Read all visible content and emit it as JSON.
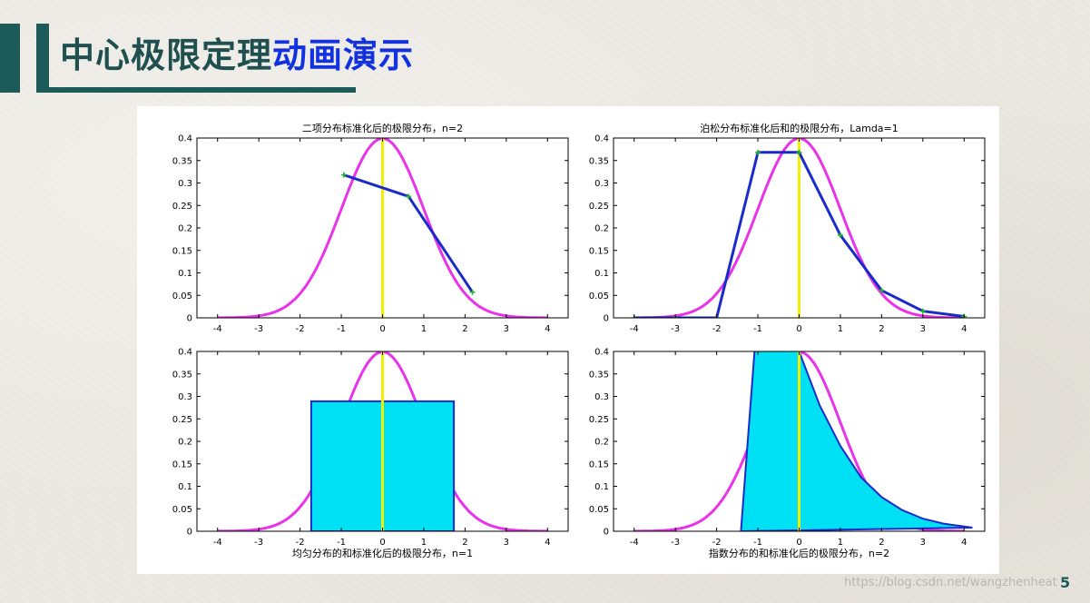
{
  "slide": {
    "title_part1": "中心极限定理",
    "title_part2": "动画演示",
    "watermark": "https://blog.csdn.net/wangzhenheat",
    "page_number": "5"
  },
  "colors": {
    "normal_curve": "#e933e9",
    "mean_line": "#f0f000",
    "data": "#1a2bc8",
    "marker": "#22bb22",
    "fill": "#00e0f4",
    "slide_accent": "#1d5a5a",
    "title_blue": "#1232e0"
  },
  "chart_data": [
    {
      "type": "line",
      "title": "二项分布标准化后的极限分布，n=2",
      "xlim": [
        -4.5,
        4.5
      ],
      "ylim": [
        0,
        0.4
      ],
      "xticks": [
        "-4",
        "-3",
        "-2",
        "-1",
        "0",
        "1",
        "2",
        "3",
        "4"
      ],
      "yticks": [
        "0",
        "0.05",
        "0.1",
        "0.15",
        "0.2",
        "0.25",
        "0.3",
        "0.35",
        "0.4"
      ],
      "series": [
        {
          "kind": "normal_pdf",
          "x_range": [
            -4,
            4
          ]
        },
        {
          "kind": "mean_line",
          "x": 0
        },
        {
          "kind": "polyline_markers",
          "x": [
            -0.94,
            0.63,
            2.18
          ],
          "y": [
            0.318,
            0.27,
            0.057
          ]
        }
      ]
    },
    {
      "type": "line",
      "title": "泊松分布标准化后和的极限分布，Lamda=1",
      "xlim": [
        -4.5,
        4.5
      ],
      "ylim": [
        0,
        0.4
      ],
      "xticks": [
        "-4",
        "-3",
        "-2",
        "-1",
        "0",
        "1",
        "2",
        "3",
        "4"
      ],
      "yticks": [
        "0",
        "0.05",
        "0.1",
        "0.15",
        "0.2",
        "0.25",
        "0.3",
        "0.35",
        "0.4"
      ],
      "series": [
        {
          "kind": "normal_pdf",
          "x_range": [
            -4,
            4
          ]
        },
        {
          "kind": "mean_line",
          "x": 0
        },
        {
          "kind": "polyline_markers",
          "x": [
            -4,
            -3,
            -2,
            -1,
            0,
            1,
            2,
            3,
            4
          ],
          "y": [
            0,
            0,
            0,
            0.368,
            0.368,
            0.184,
            0.061,
            0.015,
            0.003
          ]
        }
      ]
    },
    {
      "type": "area",
      "title": "均匀分布的和标准化后的极限分布，n=1",
      "xlim": [
        -4.5,
        4.5
      ],
      "ylim": [
        0,
        0.4
      ],
      "xticks": [
        "-4",
        "-3",
        "-2",
        "-1",
        "0",
        "1",
        "2",
        "3",
        "4"
      ],
      "yticks": [
        "0",
        "0.05",
        "0.1",
        "0.15",
        "0.2",
        "0.25",
        "0.3",
        "0.35",
        "0.4"
      ],
      "series": [
        {
          "kind": "normal_pdf",
          "x_range": [
            -4,
            4
          ]
        },
        {
          "kind": "filled_area",
          "x": [
            -1.73,
            -1.73,
            1.73,
            1.73
          ],
          "y": [
            0,
            0.289,
            0.289,
            0
          ]
        },
        {
          "kind": "mean_line",
          "x": 0
        }
      ]
    },
    {
      "type": "area",
      "title": "指数分布的和标准化后的极限分布，n=2",
      "xlim": [
        -4.5,
        4.5
      ],
      "ylim": [
        0,
        0.4
      ],
      "xticks": [
        "-4",
        "-3",
        "-2",
        "-1",
        "0",
        "1",
        "2",
        "3",
        "4"
      ],
      "yticks": [
        "0",
        "0.05",
        "0.1",
        "0.15",
        "0.2",
        "0.25",
        "0.3",
        "0.35",
        "0.4"
      ],
      "series": [
        {
          "kind": "normal_pdf",
          "x_range": [
            -4,
            4
          ]
        },
        {
          "kind": "filled_area",
          "x": [
            -1.41,
            -1.0,
            -0.5,
            0,
            0.5,
            1.0,
            1.5,
            2.0,
            2.5,
            3.0,
            3.5,
            4.2
          ],
          "y": [
            0,
            0.5,
            0.52,
            0.4,
            0.28,
            0.19,
            0.12,
            0.076,
            0.047,
            0.028,
            0.017,
            0.008
          ]
        },
        {
          "kind": "mean_line",
          "x": 0
        }
      ]
    }
  ]
}
